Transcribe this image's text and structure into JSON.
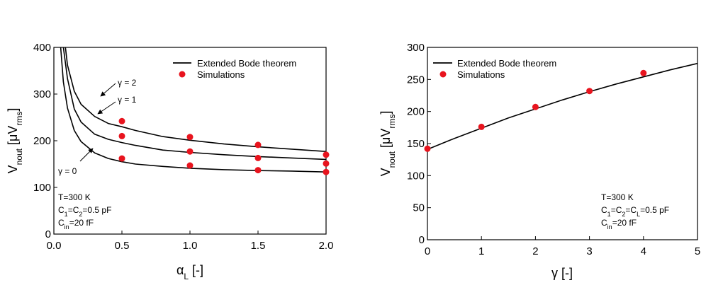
{
  "chart_data": [
    {
      "type": "line",
      "xlabel": {
        "main": "α",
        "sub": "L",
        "suffix": " [-]"
      },
      "ylabel": {
        "main": "V",
        "sub": "nout",
        "mid": " [μV",
        "sub2": "rms",
        "end": "]"
      },
      "xlim": [
        0,
        2.0
      ],
      "ylim": [
        0,
        400
      ],
      "xticks": [
        "0.0",
        "0.5",
        "1.0",
        "1.5",
        "2.0"
      ],
      "yticks": [
        "0",
        "100",
        "200",
        "300",
        "400"
      ],
      "xtick_values": [
        0,
        0.5,
        1.0,
        1.5,
        2.0
      ],
      "ytick_values": [
        0,
        100,
        200,
        300,
        400
      ],
      "legend": {
        "position": "top-right",
        "line_label": "Extended Bode theorem",
        "marker_label": "Simulations"
      },
      "series": [
        {
          "name": "γ = 0",
          "line_x": [
            0.05,
            0.07,
            0.1,
            0.15,
            0.2,
            0.3,
            0.4,
            0.5,
            0.6,
            0.8,
            1.0,
            1.25,
            1.5,
            1.75,
            2.0
          ],
          "line_y": [
            400,
            326,
            270,
            222,
            198,
            174,
            162,
            155,
            150,
            145,
            141,
            138,
            136,
            135,
            133
          ],
          "sim_x": [
            0.5,
            1.0,
            1.5,
            2.0
          ],
          "sim_y": [
            162,
            147,
            137,
            133
          ]
        },
        {
          "name": "γ = 1",
          "line_x": [
            0.07,
            0.1,
            0.15,
            0.2,
            0.3,
            0.4,
            0.5,
            0.6,
            0.8,
            1.0,
            1.25,
            1.5,
            1.75,
            2.0
          ],
          "line_y": [
            400,
            333,
            268,
            240,
            214,
            203,
            196,
            190,
            180,
            175,
            170,
            166,
            163,
            160
          ],
          "sim_x": [
            0.5,
            1.0,
            1.5,
            2.0
          ],
          "sim_y": [
            210,
            177,
            163,
            151
          ]
        },
        {
          "name": "γ = 2",
          "line_x": [
            0.085,
            0.1,
            0.15,
            0.2,
            0.3,
            0.4,
            0.5,
            0.6,
            0.8,
            1.0,
            1.25,
            1.5,
            1.75,
            2.0
          ],
          "line_y": [
            400,
            362,
            306,
            278,
            252,
            237,
            230,
            222,
            209,
            201,
            193,
            187,
            182,
            177
          ],
          "sim_x": [
            0.5,
            1.0,
            1.5,
            2.0
          ],
          "sim_y": [
            242,
            208,
            191,
            170
          ]
        }
      ],
      "annotations": [
        {
          "text": "T=300 K"
        },
        {
          "main": "C",
          "sub1": "1",
          "mid": "=C",
          "sub2": "2",
          "end": "=0.5 pF"
        },
        {
          "main": "C",
          "sub1": "in",
          "end": "=20 fF"
        }
      ]
    },
    {
      "type": "line",
      "xlabel": {
        "main": "γ",
        "suffix": " [-]"
      },
      "ylabel": {
        "main": "V",
        "sub": "nout",
        "mid": " [μV",
        "sub2": "rms",
        "end": "]"
      },
      "xlim": [
        0,
        5
      ],
      "ylim": [
        0,
        300
      ],
      "xticks": [
        "0",
        "1",
        "2",
        "3",
        "4",
        "5"
      ],
      "yticks": [
        "0",
        "50",
        "100",
        "150",
        "200",
        "250",
        "300"
      ],
      "xtick_values": [
        0,
        1,
        2,
        3,
        4,
        5
      ],
      "ytick_values": [
        0,
        50,
        100,
        150,
        200,
        250,
        300
      ],
      "legend": {
        "position": "top-left",
        "line_label": "Extended Bode theorem",
        "marker_label": "Simulations"
      },
      "series": [
        {
          "name": "",
          "line_x": [
            0,
            0.5,
            1,
            1.5,
            2,
            2.5,
            3,
            3.5,
            4,
            4.5,
            5
          ],
          "line_y": [
            141,
            158,
            174,
            190,
            204,
            218,
            231,
            243,
            254,
            265,
            275
          ],
          "sim_x": [
            0,
            1,
            2,
            3,
            4
          ],
          "sim_y": [
            142,
            176,
            207,
            232,
            260
          ]
        }
      ],
      "annotations": [
        {
          "text": "T=300 K"
        },
        {
          "main": "C",
          "sub1": "1",
          "mid": "=C",
          "sub2": "2",
          "mid2": "=C",
          "sub3": "L",
          "end": "=0.5 pF"
        },
        {
          "main": "C",
          "sub1": "in",
          "end": "=20 fF"
        }
      ]
    }
  ],
  "curve_labels": [
    "γ = 2",
    "γ = 1",
    "γ = 0"
  ],
  "colors": {
    "line": "#000000",
    "marker": "#e8141e"
  }
}
